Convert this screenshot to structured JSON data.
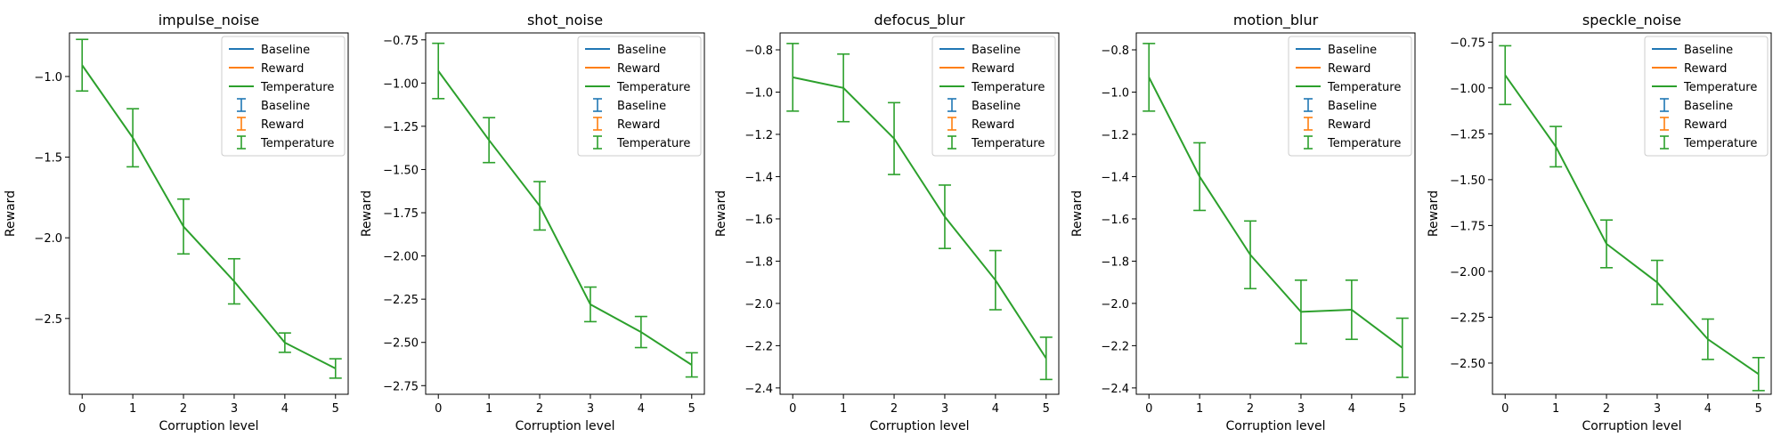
{
  "figure": {
    "xlabel": "Corruption level",
    "ylabel": "Reward"
  },
  "chart_data": [
    {
      "type": "line",
      "title": "impulse_noise",
      "xlabel": "Corruption level",
      "ylabel": "Reward",
      "x": [
        0,
        1,
        2,
        3,
        4,
        5
      ],
      "xticks": [
        0,
        1,
        2,
        3,
        4,
        5
      ],
      "yticks": [
        -1.0,
        -1.5,
        -2.0,
        -2.5
      ],
      "yticklabels": [
        "−1.0",
        "−1.5",
        "−2.0",
        "−2.5"
      ],
      "ylim": [
        -2.97,
        -0.73
      ],
      "series": [
        {
          "name": "Temperature",
          "color": "#2ca02c",
          "values": [
            -0.93,
            -1.38,
            -1.93,
            -2.27,
            -2.65,
            -2.81
          ],
          "errors": [
            0.16,
            0.18,
            0.17,
            0.14,
            0.06,
            0.06
          ]
        }
      ],
      "legend": {
        "position": "top-right",
        "lines": [
          {
            "label": "Baseline",
            "color": "#1f77b4"
          },
          {
            "label": "Reward",
            "color": "#ff7f0e"
          },
          {
            "label": "Temperature",
            "color": "#2ca02c"
          }
        ],
        "errorbars": [
          {
            "label": "Baseline",
            "color": "#1f77b4"
          },
          {
            "label": "Reward",
            "color": "#ff7f0e"
          },
          {
            "label": "Temperature",
            "color": "#2ca02c"
          }
        ]
      }
    },
    {
      "type": "line",
      "title": "shot_noise",
      "xlabel": "Corruption level",
      "ylabel": "Reward",
      "x": [
        0,
        1,
        2,
        3,
        4,
        5
      ],
      "xticks": [
        0,
        1,
        2,
        3,
        4,
        5
      ],
      "yticks": [
        -0.75,
        -1.0,
        -1.25,
        -1.5,
        -1.75,
        -2.0,
        -2.25,
        -2.5,
        -2.75
      ],
      "yticklabels": [
        "−0.75",
        "−1.00",
        "−1.25",
        "−1.50",
        "−1.75",
        "−2.00",
        "−2.25",
        "−2.50",
        "−2.75"
      ],
      "ylim": [
        -2.8,
        -0.71
      ],
      "series": [
        {
          "name": "Temperature",
          "color": "#2ca02c",
          "values": [
            -0.93,
            -1.33,
            -1.71,
            -2.28,
            -2.44,
            -2.63
          ],
          "errors": [
            0.16,
            0.13,
            0.14,
            0.1,
            0.09,
            0.07
          ]
        }
      ],
      "legend": {
        "position": "top-right",
        "lines": [
          {
            "label": "Baseline",
            "color": "#1f77b4"
          },
          {
            "label": "Reward",
            "color": "#ff7f0e"
          },
          {
            "label": "Temperature",
            "color": "#2ca02c"
          }
        ],
        "errorbars": [
          {
            "label": "Baseline",
            "color": "#1f77b4"
          },
          {
            "label": "Reward",
            "color": "#ff7f0e"
          },
          {
            "label": "Temperature",
            "color": "#2ca02c"
          }
        ]
      }
    },
    {
      "type": "line",
      "title": "defocus_blur",
      "xlabel": "Corruption level",
      "ylabel": "Reward",
      "x": [
        0,
        1,
        2,
        3,
        4,
        5
      ],
      "xticks": [
        0,
        1,
        2,
        3,
        4,
        5
      ],
      "yticks": [
        -0.8,
        -1.0,
        -1.2,
        -1.4,
        -1.6,
        -1.8,
        -2.0,
        -2.2,
        -2.4
      ],
      "yticklabels": [
        "−0.8",
        "−1.0",
        "−1.2",
        "−1.4",
        "−1.6",
        "−1.8",
        "−2.0",
        "−2.2",
        "−2.4"
      ],
      "ylim": [
        -2.43,
        -0.72
      ],
      "series": [
        {
          "name": "Temperature",
          "color": "#2ca02c",
          "values": [
            -0.93,
            -0.98,
            -1.22,
            -1.59,
            -1.89,
            -2.26
          ],
          "errors": [
            0.16,
            0.16,
            0.17,
            0.15,
            0.14,
            0.1
          ]
        }
      ],
      "legend": {
        "position": "top-right",
        "lines": [
          {
            "label": "Baseline",
            "color": "#1f77b4"
          },
          {
            "label": "Reward",
            "color": "#ff7f0e"
          },
          {
            "label": "Temperature",
            "color": "#2ca02c"
          }
        ],
        "errorbars": [
          {
            "label": "Baseline",
            "color": "#1f77b4"
          },
          {
            "label": "Reward",
            "color": "#ff7f0e"
          },
          {
            "label": "Temperature",
            "color": "#2ca02c"
          }
        ]
      }
    },
    {
      "type": "line",
      "title": "motion_blur",
      "xlabel": "Corruption level",
      "ylabel": "Reward",
      "x": [
        0,
        1,
        2,
        3,
        4,
        5
      ],
      "xticks": [
        0,
        1,
        2,
        3,
        4,
        5
      ],
      "yticks": [
        -0.8,
        -1.0,
        -1.2,
        -1.4,
        -1.6,
        -1.8,
        -2.0,
        -2.2,
        -2.4
      ],
      "yticklabels": [
        "−0.8",
        "−1.0",
        "−1.2",
        "−1.4",
        "−1.6",
        "−1.8",
        "−2.0",
        "−2.2",
        "−2.4"
      ],
      "ylim": [
        -2.43,
        -0.72
      ],
      "series": [
        {
          "name": "Temperature",
          "color": "#2ca02c",
          "values": [
            -0.93,
            -1.4,
            -1.77,
            -2.04,
            -2.03,
            -2.21
          ],
          "errors": [
            0.16,
            0.16,
            0.16,
            0.15,
            0.14,
            0.14
          ]
        }
      ],
      "legend": {
        "position": "top-right",
        "lines": [
          {
            "label": "Baseline",
            "color": "#1f77b4"
          },
          {
            "label": "Reward",
            "color": "#ff7f0e"
          },
          {
            "label": "Temperature",
            "color": "#2ca02c"
          }
        ],
        "errorbars": [
          {
            "label": "Baseline",
            "color": "#1f77b4"
          },
          {
            "label": "Reward",
            "color": "#ff7f0e"
          },
          {
            "label": "Temperature",
            "color": "#2ca02c"
          }
        ]
      }
    },
    {
      "type": "line",
      "title": "speckle_noise",
      "xlabel": "Corruption level",
      "ylabel": "Reward",
      "x": [
        0,
        1,
        2,
        3,
        4,
        5
      ],
      "xticks": [
        0,
        1,
        2,
        3,
        4,
        5
      ],
      "yticks": [
        -0.75,
        -1.0,
        -1.25,
        -1.5,
        -1.75,
        -2.0,
        -2.25,
        -2.5
      ],
      "yticklabels": [
        "−0.75",
        "−1.00",
        "−1.25",
        "−1.50",
        "−1.75",
        "−2.00",
        "−2.25",
        "−2.50"
      ],
      "ylim": [
        -2.67,
        -0.7
      ],
      "series": [
        {
          "name": "Temperature",
          "color": "#2ca02c",
          "values": [
            -0.93,
            -1.32,
            -1.85,
            -2.06,
            -2.37,
            -2.56
          ],
          "errors": [
            0.16,
            0.11,
            0.13,
            0.12,
            0.11,
            0.09
          ]
        }
      ],
      "legend": {
        "position": "top-right",
        "lines": [
          {
            "label": "Baseline",
            "color": "#1f77b4"
          },
          {
            "label": "Reward",
            "color": "#ff7f0e"
          },
          {
            "label": "Temperature",
            "color": "#2ca02c"
          }
        ],
        "errorbars": [
          {
            "label": "Baseline",
            "color": "#1f77b4"
          },
          {
            "label": "Reward",
            "color": "#ff7f0e"
          },
          {
            "label": "Temperature",
            "color": "#2ca02c"
          }
        ]
      }
    }
  ]
}
